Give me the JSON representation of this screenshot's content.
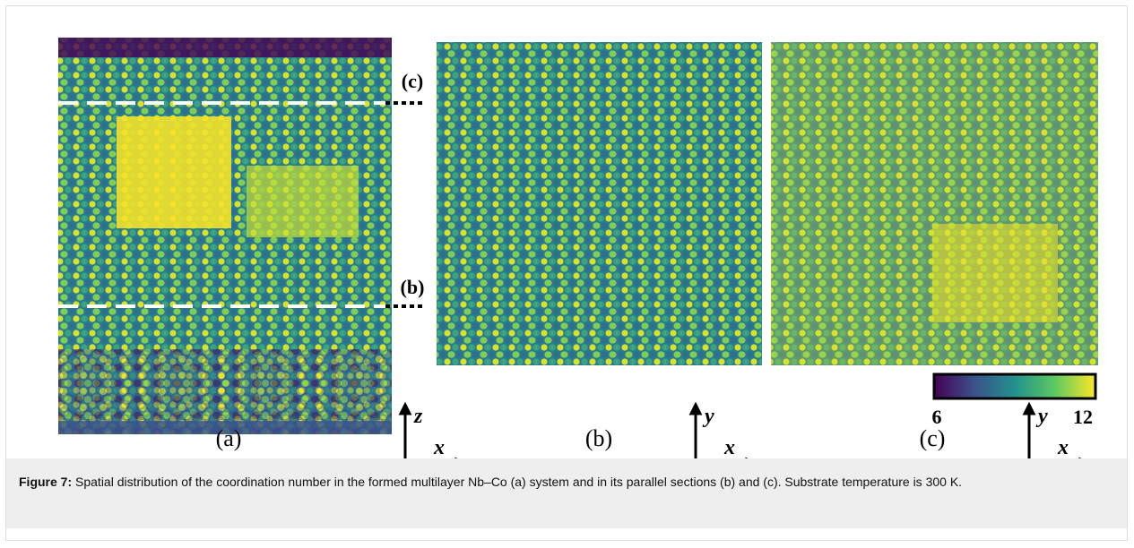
{
  "figure": {
    "section_labels": [
      "(c)",
      "(b)"
    ],
    "axes": [
      {
        "vertical": "z",
        "horizontal": "x"
      },
      {
        "vertical": "y",
        "horizontal": "x"
      },
      {
        "vertical": "y",
        "horizontal": "x"
      }
    ],
    "panel_labels": [
      "(a)",
      "(b)",
      "(c)"
    ],
    "colorbar": {
      "min": 6,
      "max": 12
    }
  },
  "caption": {
    "label": "Figure 7:",
    "text": "Spatial distribution of the coordination number in the formed multilayer Nb–Co (a) system and in its parallel sections (b) and (c). Substrate temperature is 300 K."
  }
}
